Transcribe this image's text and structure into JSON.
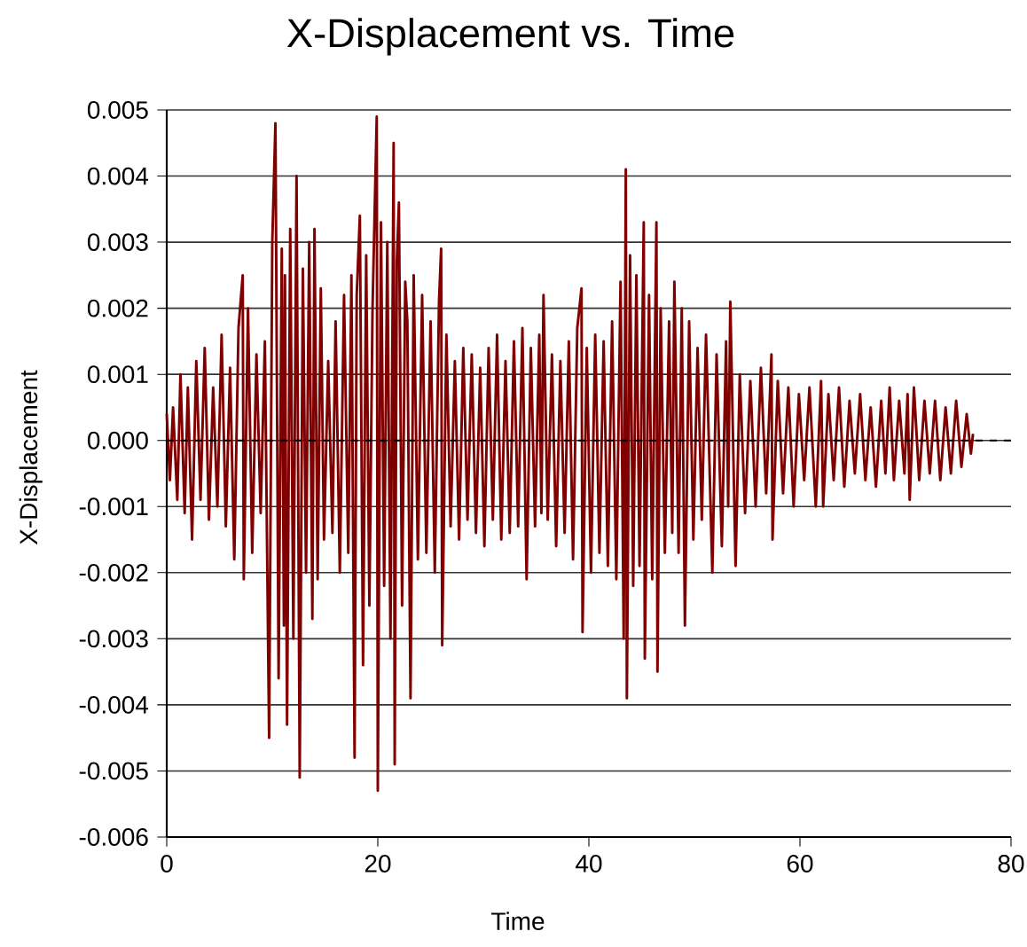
{
  "chart_data": {
    "type": "line",
    "title": "X-Displacement vs. Time",
    "xlabel": "Time",
    "ylabel": "X-Displacement",
    "xlim": [
      0,
      80
    ],
    "xticks": [
      0,
      20,
      40,
      60,
      80
    ],
    "ylim": [
      -0.006,
      0.005
    ],
    "yticks": [
      0.005,
      0.004,
      0.003,
      0.002,
      0.001,
      {
        "value": 0,
        "label": "0.000"
      },
      -0.001,
      -0.002,
      -0.003,
      -0.004,
      -0.005,
      -0.006
    ],
    "grid": "y",
    "marker": "none",
    "line_style": "solid",
    "ref_lines": [
      {
        "axis": "y",
        "value": 0,
        "color": "#000000",
        "line_style": "dashed"
      }
    ],
    "series": [
      {
        "color": "#800000",
        "x": [
          0.0,
          0.3,
          0.6,
          1.0,
          1.3,
          1.7,
          2.0,
          2.4,
          2.8,
          3.2,
          3.6,
          4.0,
          4.4,
          4.8,
          5.2,
          5.6,
          6.0,
          6.4,
          6.8,
          7.2,
          7.3,
          7.7,
          8.1,
          8.5,
          8.9,
          9.3,
          9.7,
          10.0,
          10.3,
          10.6,
          10.9,
          11.1,
          11.2,
          11.4,
          11.7,
          12.0,
          12.3,
          12.6,
          12.9,
          13.2,
          13.5,
          13.8,
          14.0,
          14.3,
          14.6,
          14.9,
          15.3,
          15.7,
          16.0,
          16.4,
          16.8,
          17.2,
          17.5,
          17.8,
          18.0,
          18.3,
          18.6,
          18.9,
          19.2,
          19.5,
          19.9,
          20.0,
          20.3,
          20.6,
          20.9,
          21.2,
          21.5,
          21.6,
          21.8,
          22.0,
          22.3,
          22.6,
          22.8,
          23.1,
          23.4,
          23.8,
          24.2,
          24.6,
          25.0,
          25.4,
          25.8,
          26.0,
          26.1,
          26.5,
          26.9,
          27.3,
          27.7,
          28.1,
          28.5,
          28.9,
          29.3,
          29.7,
          30.1,
          30.5,
          30.9,
          31.3,
          31.7,
          32.1,
          32.5,
          32.9,
          33.3,
          33.7,
          34.1,
          34.5,
          34.9,
          35.3,
          35.5,
          35.7,
          36.1,
          36.5,
          36.9,
          37.3,
          37.7,
          38.1,
          38.5,
          38.9,
          39.3,
          39.4,
          39.8,
          40.2,
          40.6,
          41.0,
          41.4,
          41.8,
          42.2,
          42.6,
          43.0,
          43.3,
          43.5,
          43.6,
          43.9,
          44.2,
          44.5,
          44.8,
          45.2,
          45.3,
          45.7,
          46.0,
          46.4,
          46.5,
          46.8,
          47.2,
          47.6,
          47.9,
          48.1,
          48.5,
          48.8,
          49.1,
          49.5,
          49.9,
          50.3,
          50.7,
          51.1,
          51.7,
          52.1,
          52.6,
          53.0,
          53.2,
          53.4,
          53.9,
          54.3,
          54.8,
          55.3,
          55.8,
          56.3,
          56.8,
          57.3,
          57.4,
          57.9,
          58.4,
          58.9,
          59.4,
          59.9,
          60.4,
          60.9,
          61.5,
          62.0,
          62.2,
          62.7,
          63.2,
          63.7,
          64.2,
          64.7,
          65.2,
          65.7,
          66.2,
          66.7,
          67.2,
          67.7,
          68.1,
          68.5,
          68.9,
          69.4,
          69.9,
          70.2,
          70.4,
          70.8,
          71.3,
          71.8,
          72.3,
          72.8,
          73.3,
          73.8,
          74.3,
          74.8,
          75.3,
          75.8,
          76.2,
          76.4
        ],
        "values": [
          0.0004,
          -0.0006,
          0.0005,
          -0.0009,
          0.001,
          -0.0011,
          0.0008,
          -0.0015,
          0.0012,
          -0.0009,
          0.0014,
          -0.0012,
          0.0008,
          -0.001,
          0.0016,
          -0.0013,
          0.0011,
          -0.0018,
          0.0017,
          0.0025,
          -0.0021,
          0.002,
          -0.0017,
          0.0013,
          -0.0011,
          0.0015,
          -0.0045,
          0.003,
          0.0048,
          -0.0036,
          0.0029,
          -0.0028,
          0.0025,
          -0.0043,
          0.0032,
          -0.003,
          0.004,
          -0.0051,
          0.0026,
          -0.002,
          0.003,
          -0.0027,
          0.0032,
          -0.0021,
          0.0023,
          -0.0015,
          0.0012,
          -0.0014,
          0.0018,
          -0.002,
          0.0022,
          -0.0017,
          0.0025,
          -0.0048,
          0.0022,
          0.0034,
          -0.0034,
          0.0028,
          -0.0025,
          0.002,
          0.0049,
          -0.0053,
          0.0033,
          -0.0022,
          0.003,
          -0.003,
          0.0045,
          -0.0049,
          0.0027,
          0.0036,
          -0.0025,
          0.0024,
          0.0018,
          -0.0039,
          0.0025,
          -0.0018,
          0.0022,
          -0.0017,
          0.0018,
          -0.002,
          0.0021,
          0.0029,
          -0.0031,
          0.0016,
          -0.0013,
          0.0012,
          -0.0015,
          0.0014,
          -0.0012,
          0.0013,
          -0.0014,
          0.0011,
          -0.0016,
          0.0014,
          -0.0012,
          0.0016,
          -0.0015,
          0.0012,
          -0.0014,
          0.0015,
          -0.0013,
          0.0017,
          -0.0021,
          0.0014,
          -0.0013,
          0.0016,
          -0.0011,
          0.0022,
          -0.0012,
          0.0013,
          -0.0016,
          0.0012,
          -0.0014,
          0.0015,
          -0.0018,
          0.0017,
          0.0023,
          -0.0029,
          0.0014,
          -0.002,
          0.0016,
          -0.0017,
          0.0015,
          -0.0019,
          0.0018,
          -0.0021,
          0.0024,
          -0.003,
          0.0041,
          -0.0039,
          0.0028,
          -0.0022,
          0.0025,
          -0.0019,
          0.0033,
          -0.0033,
          0.0022,
          -0.0021,
          0.0033,
          -0.0035,
          0.002,
          -0.0017,
          0.0018,
          -0.0014,
          0.0024,
          -0.0017,
          0.002,
          -0.0028,
          0.0018,
          -0.0015,
          0.0014,
          -0.0012,
          0.0016,
          -0.002,
          0.0013,
          -0.0016,
          0.0015,
          -0.001,
          0.0021,
          -0.0019,
          0.001,
          -0.0011,
          0.0009,
          -0.001,
          0.0011,
          -0.0008,
          0.0013,
          -0.0015,
          0.0009,
          -0.0008,
          0.0008,
          -0.001,
          0.0007,
          -0.0006,
          0.0008,
          -0.001,
          0.0009,
          -0.001,
          0.0007,
          -0.0006,
          0.0008,
          -0.0007,
          0.0006,
          -0.0005,
          0.0007,
          -0.0006,
          0.0005,
          -0.0007,
          0.0006,
          -0.0005,
          0.0008,
          -0.0006,
          0.0006,
          -0.0005,
          0.0007,
          -0.0009,
          0.0008,
          -0.0006,
          0.0006,
          -0.0005,
          0.0006,
          -0.0006,
          0.0005,
          -0.0005,
          0.0006,
          -0.0004,
          0.0004,
          -0.0002,
          0.0001
        ]
      }
    ]
  }
}
